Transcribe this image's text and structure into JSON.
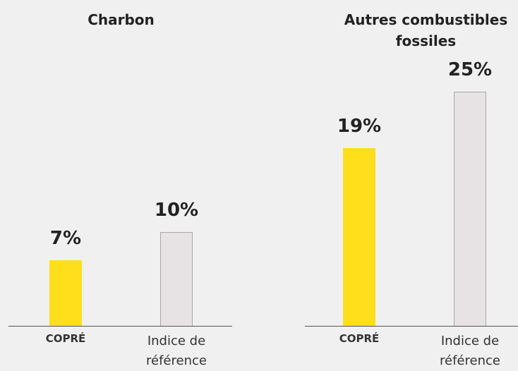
{
  "chart_data": [
    {
      "type": "bar",
      "title": "Charbon",
      "categories": [
        "COPRÉ",
        "Indice de référence"
      ],
      "values": [
        7,
        10
      ],
      "value_labels": [
        "7%",
        "10%"
      ],
      "colors": [
        "#ffdf1b",
        "#e7e3e4"
      ]
    },
    {
      "type": "bar",
      "title": "Autres combustibles fossiles",
      "categories": [
        "COPRÉ",
        "Indice de référence"
      ],
      "values": [
        19,
        25
      ],
      "value_labels": [
        "19%",
        "25%"
      ],
      "colors": [
        "#ffdf1b",
        "#e7e3e4"
      ]
    }
  ]
}
